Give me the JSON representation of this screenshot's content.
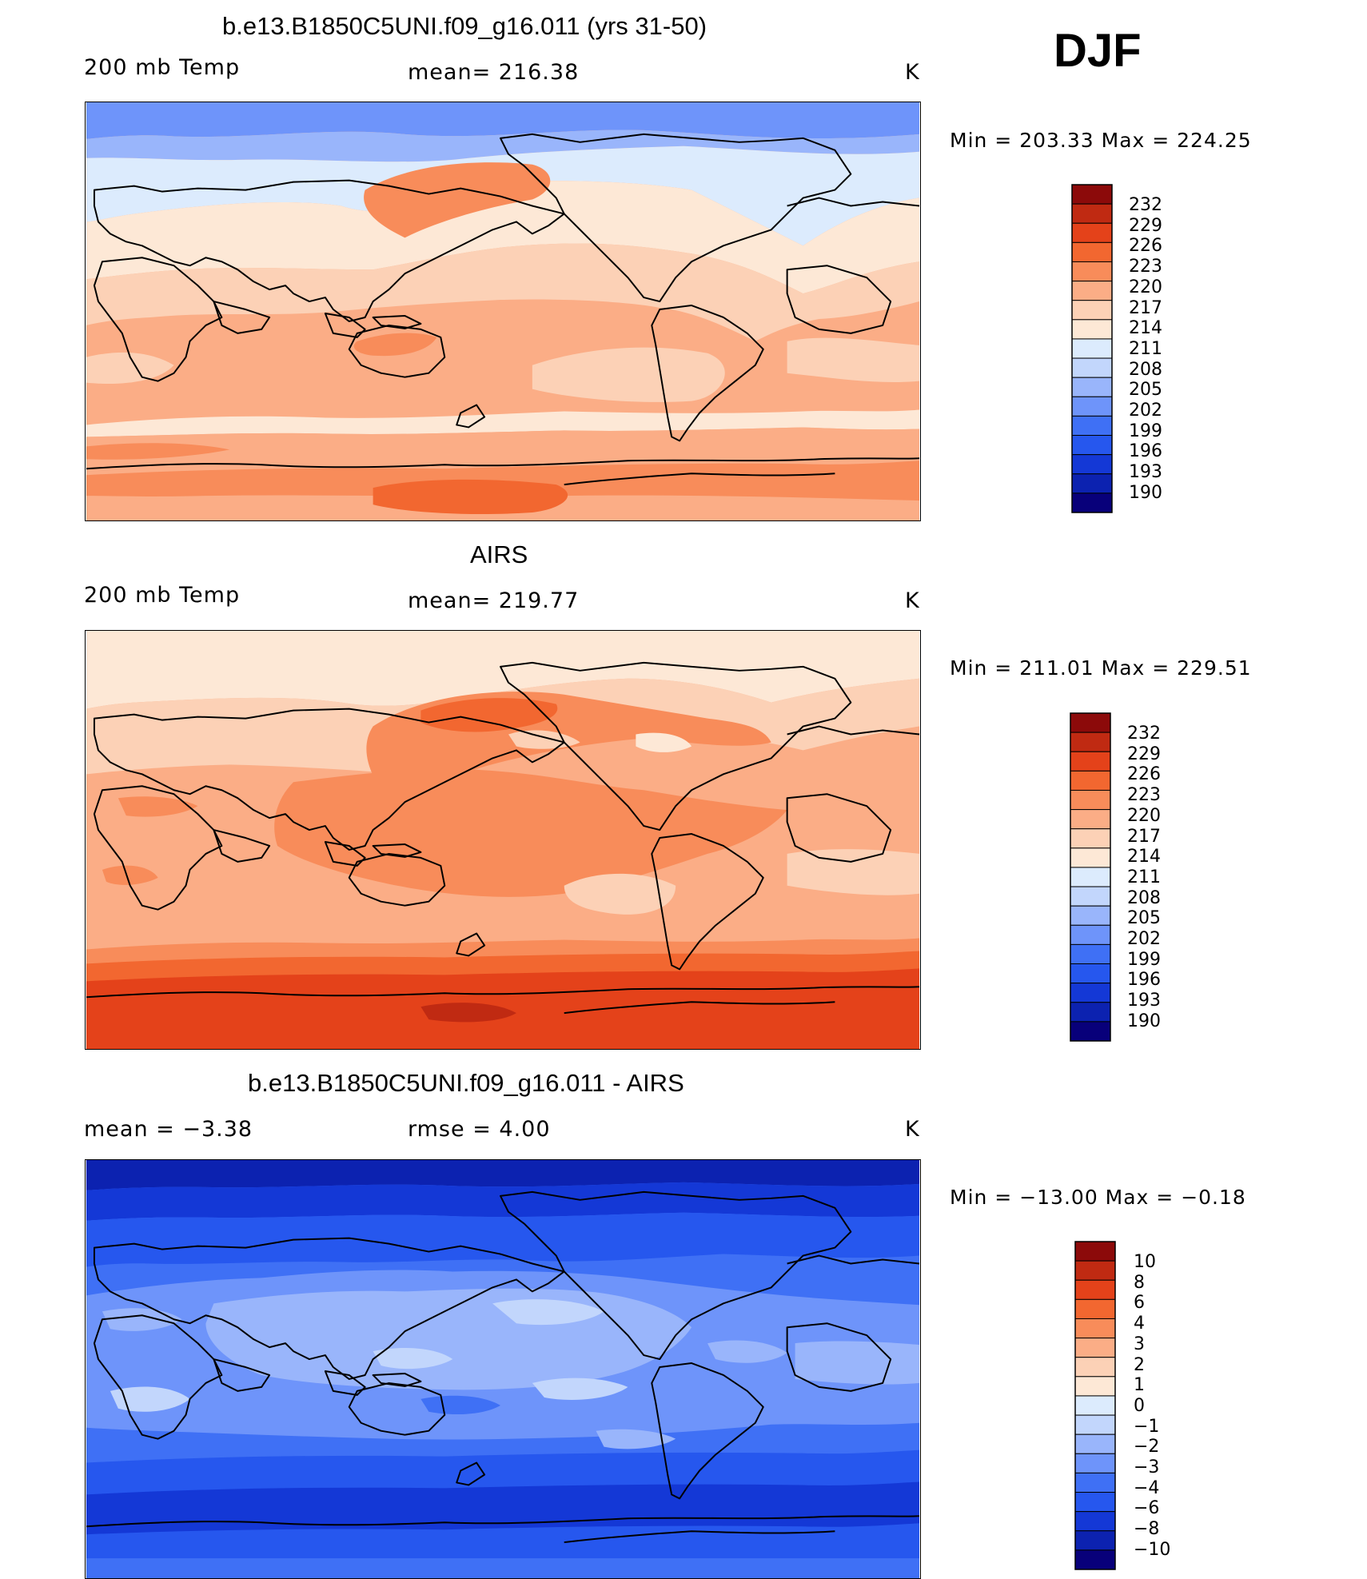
{
  "season": "DJF",
  "colors": {
    "temp_scale": [
      "#08007a",
      "#0c22b0",
      "#1438d6",
      "#2657ee",
      "#3f70f5",
      "#6e94fa",
      "#99b5fb",
      "#c2d6fc",
      "#dcebfd",
      "#fde8d6",
      "#fcd1b6",
      "#fbad86",
      "#f88c5a",
      "#f26730",
      "#e4421a",
      "#c02a12",
      "#8c0a0a"
    ],
    "diff_scale": [
      "#08007a",
      "#0c22b0",
      "#1438d6",
      "#2657ee",
      "#3f70f5",
      "#6e94fa",
      "#99b5fb",
      "#c2d6fc",
      "#dcebfd",
      "#fde8d6",
      "#fcd1b6",
      "#fbad86",
      "#f88c5a",
      "#f26730",
      "#e4421a",
      "#c02a12",
      "#8c0a0a"
    ]
  },
  "panels": [
    {
      "title": "b.e13.B1850C5UNI.f09_g16.011 (yrs 31-50)",
      "left_label": "200 mb Temp",
      "mean_label": "mean= 216.38",
      "unit": "K",
      "minmax": "Min = 203.33 Max = 224.25",
      "colorbar_ticks": [
        "232",
        "229",
        "226",
        "223",
        "220",
        "217",
        "214",
        "211",
        "208",
        "205",
        "202",
        "199",
        "196",
        "193",
        "190"
      ]
    },
    {
      "title": "AIRS",
      "left_label": "200 mb Temp",
      "mean_label": "mean= 219.77",
      "unit": "K",
      "minmax": "Min = 211.01 Max = 229.51",
      "colorbar_ticks": [
        "232",
        "229",
        "226",
        "223",
        "220",
        "217",
        "214",
        "211",
        "208",
        "205",
        "202",
        "199",
        "196",
        "193",
        "190"
      ]
    },
    {
      "title": "b.e13.B1850C5UNI.f09_g16.011 - AIRS",
      "left_label": "mean =   −3.38",
      "mean_label": "rmse =    4.00",
      "unit": "K",
      "minmax": "Min = −13.00 Max =  −0.18",
      "colorbar_ticks": [
        "10",
        "8",
        "6",
        "4",
        "3",
        "2",
        "1",
        "0",
        "−1",
        "−2",
        "−3",
        "−4",
        "−6",
        "−8",
        "−10"
      ]
    }
  ]
}
